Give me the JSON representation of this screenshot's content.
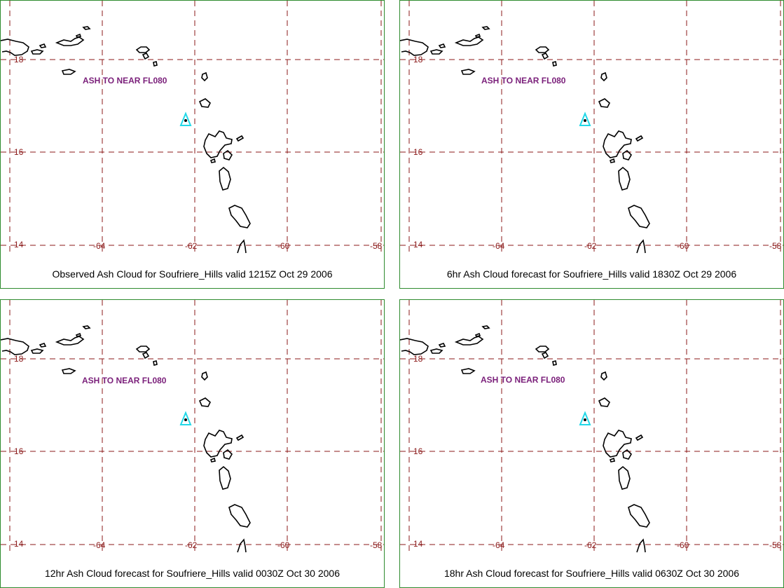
{
  "panels": [
    {
      "caption": "Observed Ash Cloud for Soufriere_Hills valid 1215Z Oct 29 2006",
      "annotation": "ASH TO NEAR FL080",
      "cloud_color": "#8b4a26",
      "cloud_shape": "observed"
    },
    {
      "caption": "6hr Ash Cloud forecast for Soufriere_Hills valid 1830Z Oct 29 2006",
      "annotation": "ASH TO NEAR FL080",
      "cloud_color": "#19e619",
      "cloud_shape": "forecast"
    },
    {
      "caption": "12hr Ash Cloud forecast for Soufriere_Hills valid 0030Z Oct 30 2006",
      "annotation": "ASH TO NEAR FL080",
      "cloud_color": "#33e6e6",
      "cloud_shape": "forecast"
    },
    {
      "caption": "18hr Ash Cloud forecast for Soufriere_Hills valid 0630Z Oct 30 2006",
      "annotation": "ASH TO NEAR FL080",
      "cloud_color": "#e619e6",
      "cloud_shape": "forecast"
    }
  ],
  "lat_labels": [
    "18",
    "16",
    "14"
  ],
  "lon_labels": [
    "-64",
    "-62",
    "-60",
    "-58"
  ],
  "colors": {
    "grid": "#8b1a1a",
    "border": "#2e8b2e",
    "annotation": "#7a1f7a",
    "volcano": "#22d8e8",
    "coast": "#000000"
  },
  "volcano_icon": "triangle-icon"
}
